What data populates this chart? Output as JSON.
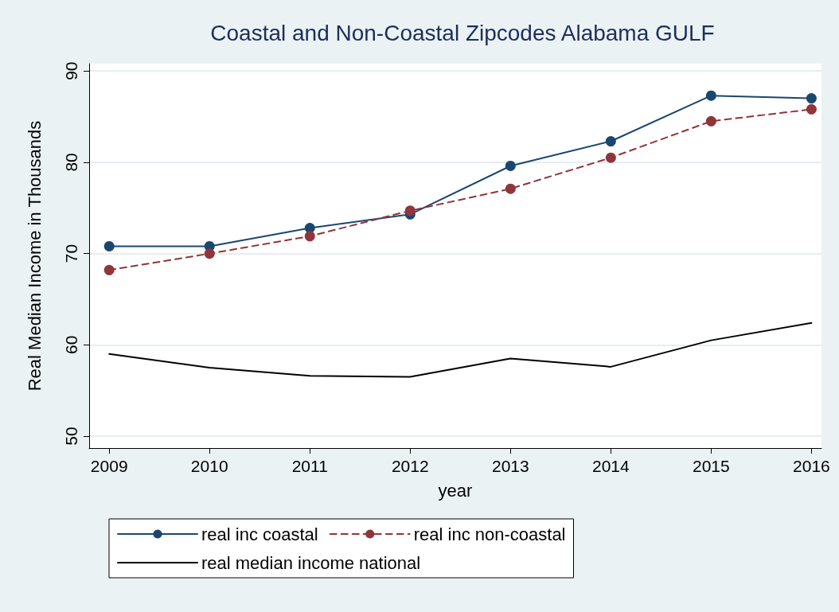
{
  "chart_data": {
    "type": "line",
    "title": "Coastal and Non-Coastal Zipcodes Alabama GULF",
    "xlabel": "year",
    "ylabel": "Real Median Income in Thousands",
    "x": [
      2009,
      2010,
      2011,
      2012,
      2013,
      2014,
      2015,
      2016
    ],
    "series": [
      {
        "name": "real inc coastal",
        "color": "#1a476f",
        "marker": "circle",
        "line_style": "solid",
        "values": [
          70.8,
          70.8,
          72.8,
          74.3,
          79.6,
          82.3,
          87.3,
          87.0
        ]
      },
      {
        "name": "real inc non-coastal",
        "color": "#90353b",
        "marker": "circle",
        "line_style": "dashed",
        "values": [
          68.2,
          70.0,
          71.9,
          74.7,
          77.1,
          80.5,
          84.5,
          85.8
        ]
      },
      {
        "name": "real median income national",
        "color": "#000000",
        "marker": "none",
        "line_style": "solid",
        "values": [
          59.0,
          57.5,
          56.6,
          56.5,
          58.5,
          57.6,
          60.5,
          62.4
        ]
      }
    ],
    "xlim": [
      2008.8,
      2016.1
    ],
    "xticks": [
      2009,
      2010,
      2011,
      2012,
      2013,
      2014,
      2015,
      2016
    ],
    "ylim": [
      48.7,
      90.8
    ],
    "yticks": [
      50,
      60,
      70,
      80,
      90
    ],
    "grid": "y",
    "legend": "bottom"
  }
}
